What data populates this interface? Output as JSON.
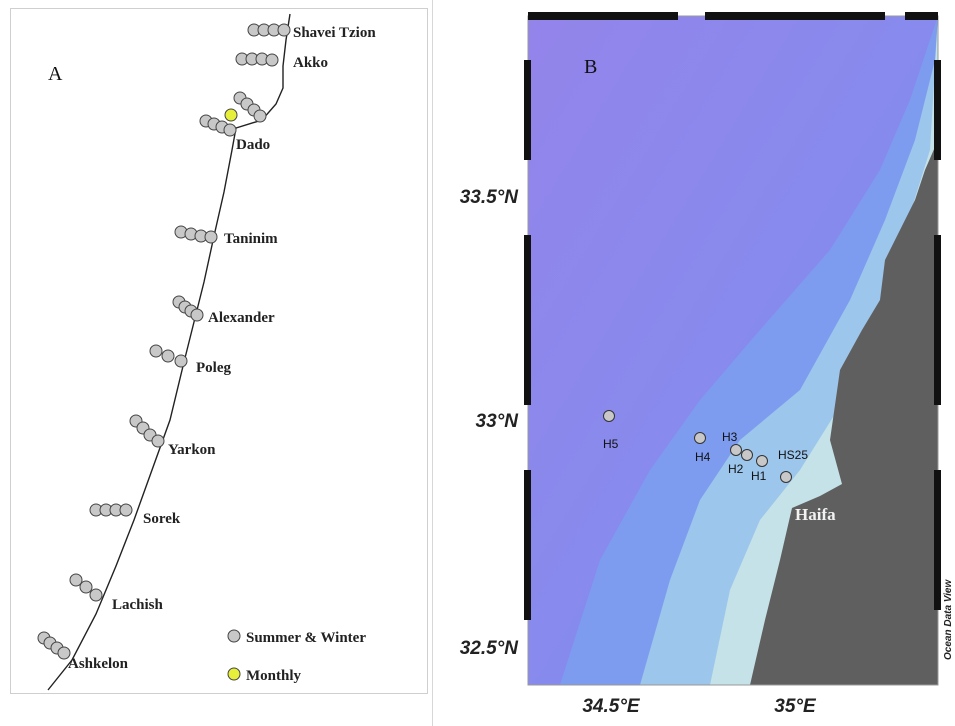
{
  "panel_a": {
    "label": "A",
    "sites": [
      {
        "name": "Shavei Tzion",
        "stations": 4,
        "type": "seasonal"
      },
      {
        "name": "Akko",
        "stations": 4,
        "type": "seasonal"
      },
      {
        "name": "",
        "stations": 4,
        "type": "seasonal"
      },
      {
        "name": "Dado",
        "stations": 4,
        "type": "seasonal",
        "monthly_station": true
      },
      {
        "name": "Taninim",
        "stations": 4,
        "type": "seasonal"
      },
      {
        "name": "Alexander",
        "stations": 4,
        "type": "seasonal"
      },
      {
        "name": "Poleg",
        "stations": 3,
        "type": "seasonal"
      },
      {
        "name": "Yarkon",
        "stations": 4,
        "type": "seasonal"
      },
      {
        "name": "Sorek",
        "stations": 4,
        "type": "seasonal"
      },
      {
        "name": "Lachish",
        "stations": 3,
        "type": "seasonal"
      },
      {
        "name": "Ashkelon",
        "stations": 4,
        "type": "seasonal"
      }
    ],
    "legend": [
      {
        "label": "Summer & Winter",
        "color": "#c8c8c8"
      },
      {
        "label": "Monthly",
        "color": "#e6f03a"
      }
    ]
  },
  "panel_b": {
    "label": "B",
    "lat_ticks": [
      "33.5°N",
      "33°N",
      "32.5°N"
    ],
    "lon_ticks": [
      "34.5°E",
      "35°E"
    ],
    "stations": [
      "H5",
      "H4",
      "H3",
      "H2",
      "H1",
      "HS25"
    ],
    "city": "Haifa",
    "credit": "Ocean Data View",
    "colors": {
      "deep": "#8c86ec",
      "mid": "#7d9cf0",
      "shelf": "#9cc6ec",
      "shallow": "#c4e2e8",
      "land": "#5f5f5f"
    }
  }
}
